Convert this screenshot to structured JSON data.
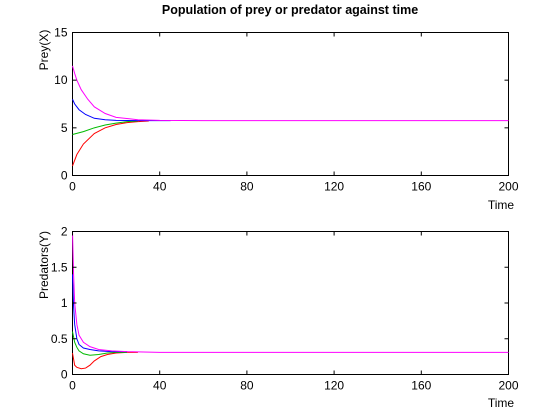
{
  "chart_data": [
    {
      "type": "line",
      "title": "Population of prey or predator against time",
      "xlabel": "Time",
      "ylabel": "Prey(X)",
      "xlim": [
        0,
        200
      ],
      "ylim": [
        0,
        15
      ],
      "xticks": [
        0,
        40,
        80,
        120,
        160,
        200
      ],
      "yticks": [
        0,
        5,
        10,
        15
      ],
      "grid": false,
      "series": [
        {
          "color": "#ff0000",
          "x": [
            0,
            2,
            5,
            10,
            15,
            20,
            25,
            30,
            35
          ],
          "y": [
            1.0,
            2.2,
            3.3,
            4.4,
            5.0,
            5.35,
            5.55,
            5.65,
            5.72
          ]
        },
        {
          "color": "#00bb00",
          "x": [
            0,
            5,
            10,
            15,
            20,
            25,
            30
          ],
          "y": [
            4.3,
            4.6,
            5.0,
            5.3,
            5.5,
            5.65,
            5.72
          ]
        },
        {
          "color": "#0000ff",
          "x": [
            0,
            1,
            3,
            6,
            10,
            15,
            20,
            30,
            45
          ],
          "y": [
            8.0,
            7.5,
            6.9,
            6.4,
            6.0,
            5.85,
            5.78,
            5.75,
            5.75
          ]
        },
        {
          "color": "#ff00ff",
          "x": [
            0,
            1,
            2,
            4,
            7,
            10,
            15,
            20,
            30,
            40,
            60,
            100,
            150,
            200
          ],
          "y": [
            11.5,
            10.7,
            10.0,
            9.0,
            8.0,
            7.2,
            6.5,
            6.1,
            5.85,
            5.78,
            5.75,
            5.75,
            5.75,
            5.75
          ]
        }
      ]
    },
    {
      "type": "line",
      "title": "",
      "xlabel": "Time",
      "ylabel": "Predators(Y)",
      "xlim": [
        0,
        200
      ],
      "ylim": [
        0,
        2
      ],
      "xticks": [
        0,
        40,
        80,
        120,
        160,
        200
      ],
      "yticks": [
        0,
        0.5,
        1,
        1.5,
        2
      ],
      "grid": false,
      "series": [
        {
          "color": "#ff0000",
          "x": [
            0,
            1,
            2,
            4,
            6,
            8,
            10,
            13,
            16,
            20,
            25,
            30
          ],
          "y": [
            0.3,
            0.13,
            0.1,
            0.08,
            0.09,
            0.13,
            0.19,
            0.25,
            0.28,
            0.3,
            0.31,
            0.31
          ]
        },
        {
          "color": "#00bb00",
          "x": [
            0,
            1,
            2,
            3,
            5,
            8,
            12,
            16,
            20,
            25
          ],
          "y": [
            0.6,
            0.45,
            0.38,
            0.33,
            0.29,
            0.27,
            0.28,
            0.3,
            0.31,
            0.31
          ]
        },
        {
          "color": "#0000ff",
          "x": [
            0,
            0.5,
            1,
            2,
            3,
            5,
            8,
            12,
            18,
            25
          ],
          "y": [
            1.4,
            0.95,
            0.7,
            0.5,
            0.42,
            0.37,
            0.35,
            0.33,
            0.32,
            0.32
          ]
        },
        {
          "color": "#ff00ff",
          "x": [
            0,
            0.5,
            1,
            2,
            3,
            5,
            8,
            12,
            18,
            25,
            40,
            80,
            120,
            160,
            200
          ],
          "y": [
            2.0,
            1.4,
            1.0,
            0.7,
            0.55,
            0.45,
            0.39,
            0.35,
            0.33,
            0.32,
            0.31,
            0.31,
            0.31,
            0.31,
            0.31
          ]
        }
      ]
    }
  ]
}
